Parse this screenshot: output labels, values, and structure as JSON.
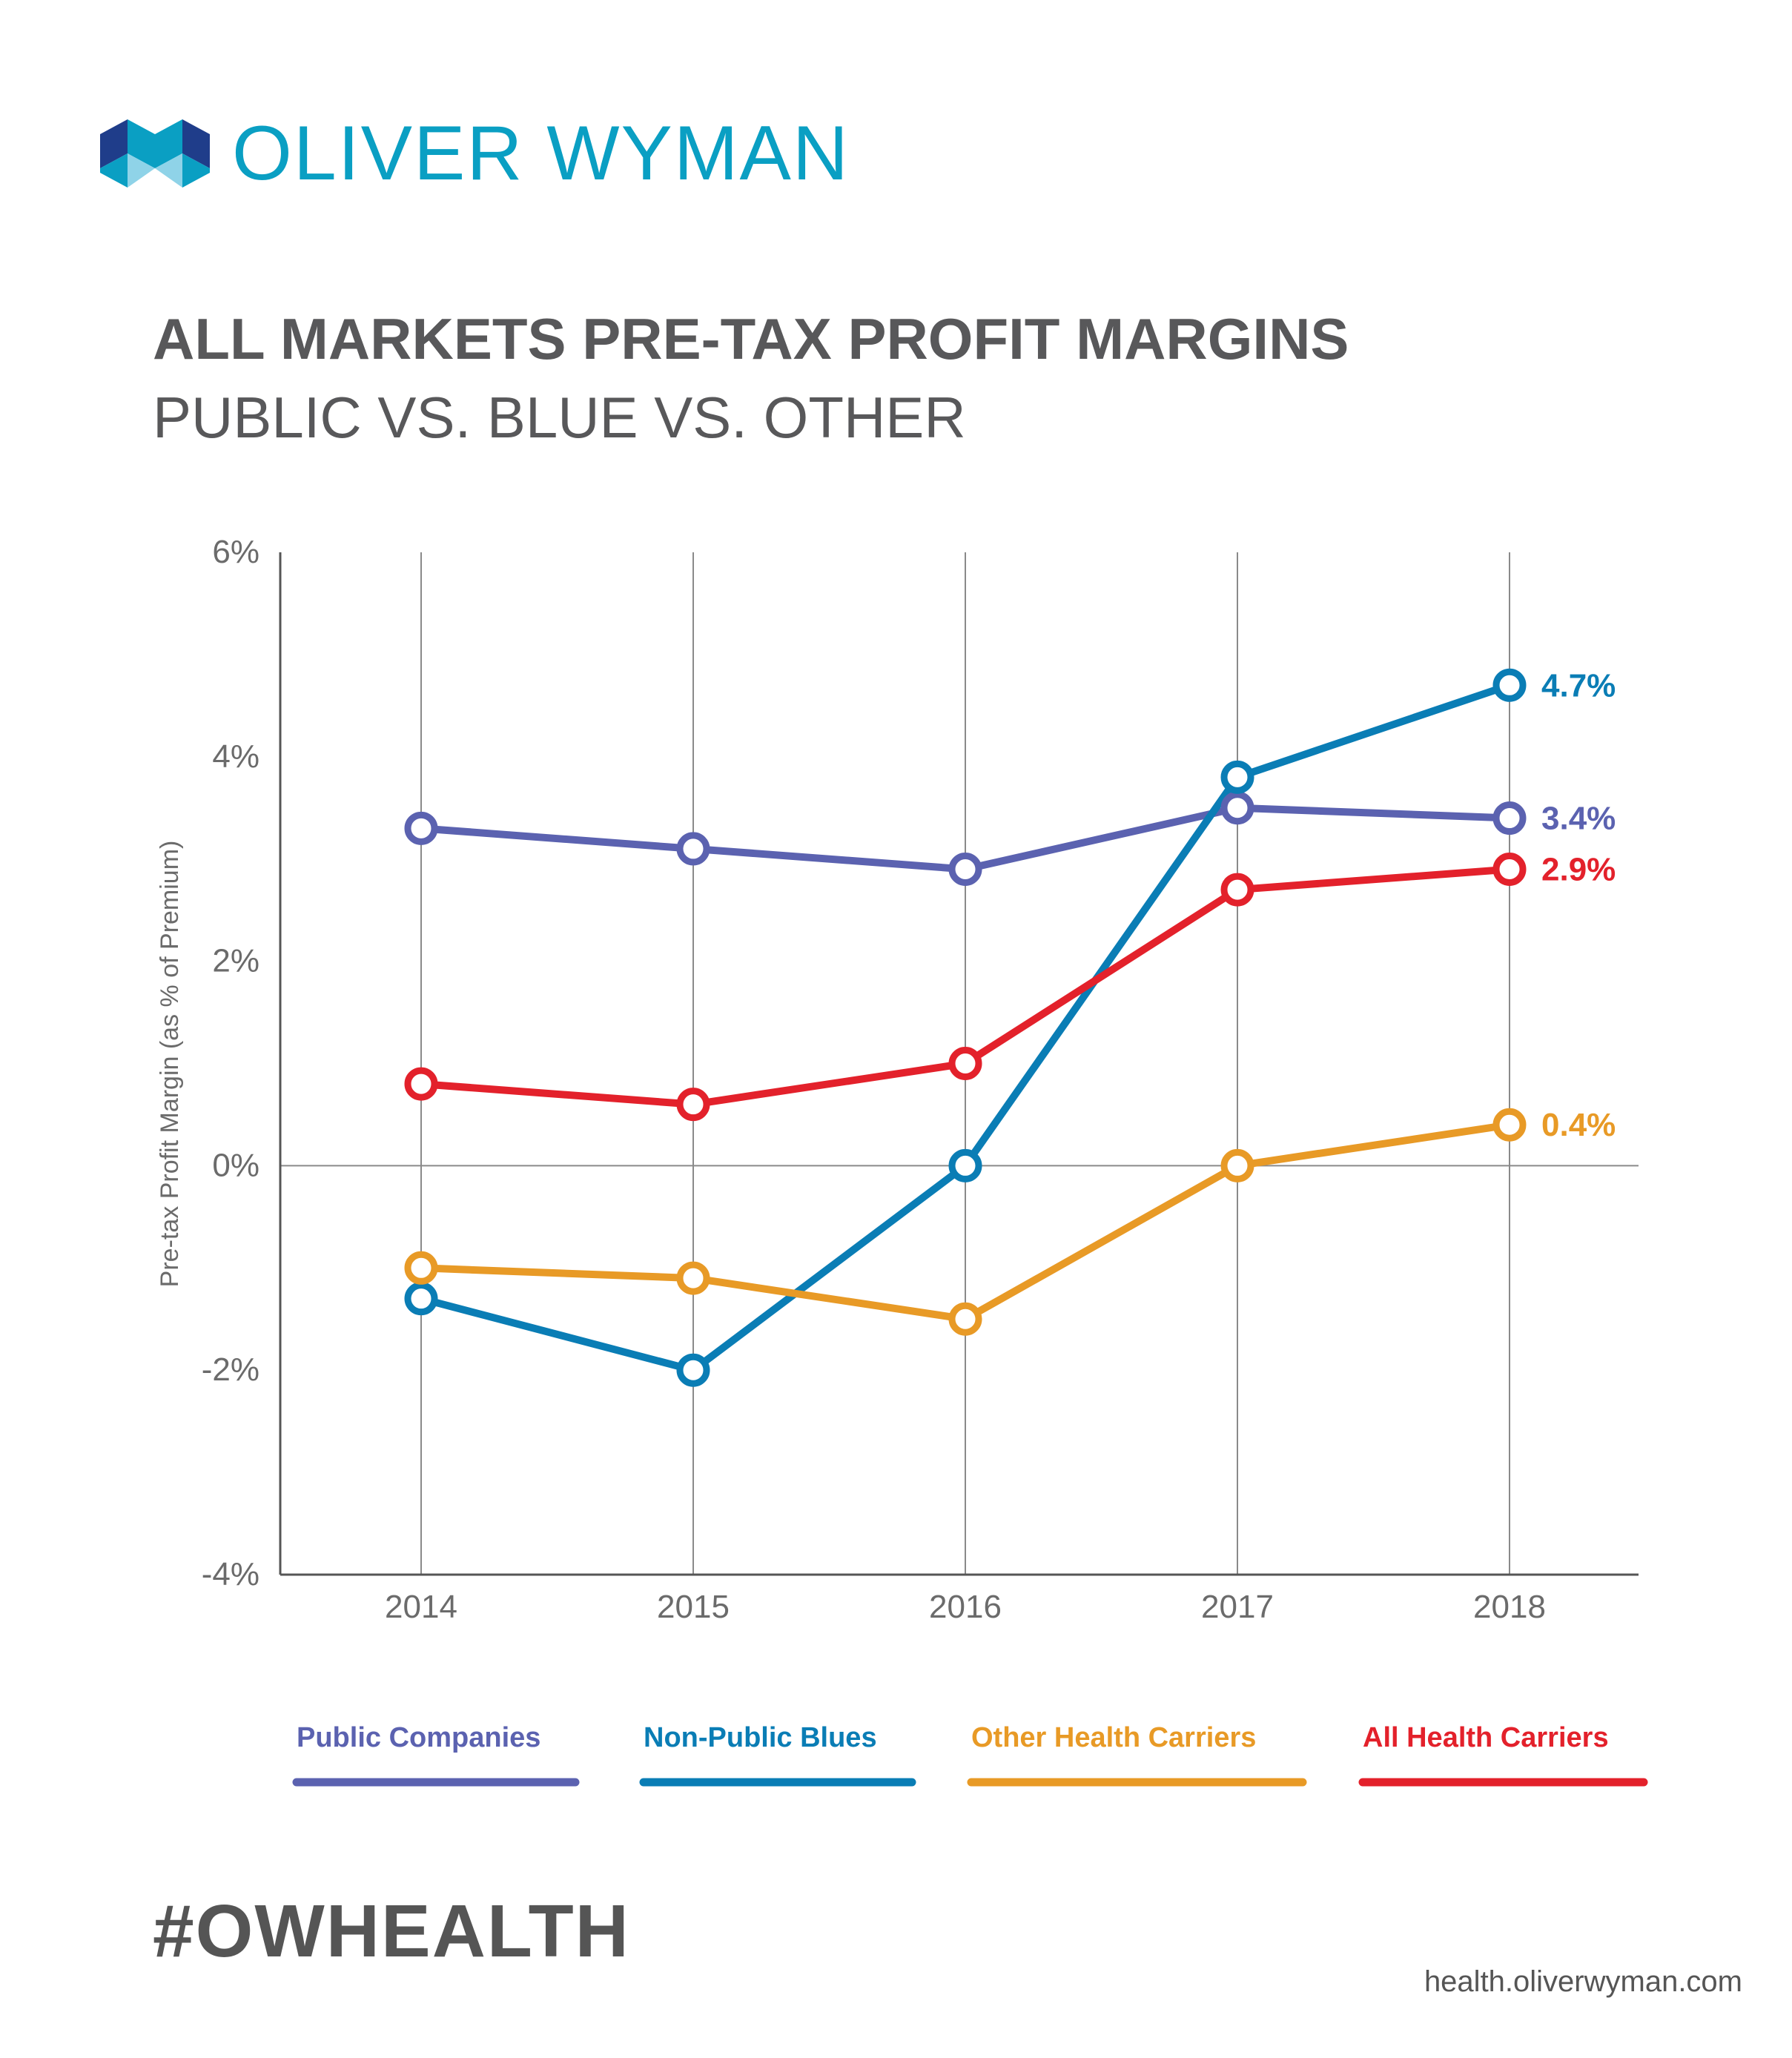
{
  "brand": {
    "name": "OLIVER WYMAN",
    "colors": {
      "logo_text": "#0a9fc3",
      "logo_dark": "#1f3d8a",
      "logo_mid": "#0a9fc3",
      "logo_light": "#8fd3e8"
    }
  },
  "hashtag": "#OWHEALTH",
  "footer_url": "health.oliverwyman.com",
  "chart_data": {
    "type": "line",
    "title": "ALL MARKETS PRE-TAX PROFIT MARGINS",
    "subtitle": "PUBLIC VS. BLUE VS. OTHER",
    "ylabel": "Pre-tax Profit Margin (as % of Premium)",
    "xlabel": "",
    "categories": [
      "2014",
      "2015",
      "2016",
      "2017",
      "2018"
    ],
    "ylim": [
      -4,
      6
    ],
    "yticks": [
      6,
      4,
      2,
      0,
      -2,
      -4
    ],
    "ytick_labels": [
      "6%",
      "4%",
      "2%",
      "0%",
      "-2%",
      "-4%"
    ],
    "grid": "vertical lines at categories, horizontal line at 0%",
    "legend_position": "bottom",
    "series": [
      {
        "name": "Public Companies",
        "color": "#5b62b0",
        "values": [
          3.3,
          3.1,
          2.9,
          3.5,
          3.4
        ],
        "end_label": "3.4%"
      },
      {
        "name": "Non-Public  Blues",
        "color": "#0a7db5",
        "values": [
          -1.3,
          -2.0,
          0.0,
          3.8,
          4.7
        ],
        "end_label": "4.7%"
      },
      {
        "name": "Other Health Carriers",
        "color": "#e89a26",
        "values": [
          -1.0,
          -1.1,
          -1.5,
          0.0,
          0.4
        ],
        "end_label": "0.4%"
      },
      {
        "name": "All Health Carriers",
        "color": "#e3212b",
        "values": [
          0.8,
          0.6,
          1.0,
          2.7,
          2.9
        ],
        "end_label": "2.9%"
      }
    ]
  }
}
